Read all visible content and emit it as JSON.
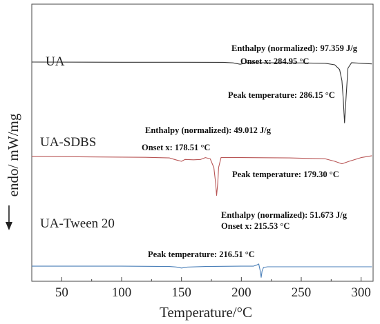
{
  "chart_data": {
    "type": "line",
    "xlabel": "Temperature/°C",
    "ylabel": "endo/ mW/mg",
    "xlim": [
      25,
      310
    ],
    "xticks": [
      50,
      100,
      150,
      200,
      250,
      300
    ],
    "xtick_labels": [
      "50",
      "100",
      "150",
      "200",
      "250",
      "300"
    ],
    "grid": false,
    "series": [
      {
        "name": "UA",
        "color": "#333333",
        "points": [
          [
            25,
            0.0
          ],
          [
            100,
            -0.3
          ],
          [
            150,
            -0.3
          ],
          [
            185,
            -0.4
          ],
          [
            193,
            -1.3
          ],
          [
            199,
            -3.5
          ],
          [
            205,
            -1.0
          ],
          [
            250,
            -1.4
          ],
          [
            270,
            -2.0
          ],
          [
            278,
            -4.5
          ],
          [
            282,
            -12
          ],
          [
            284,
            -30
          ],
          [
            285,
            -58
          ],
          [
            286.15,
            -98
          ],
          [
            287.5,
            -55
          ],
          [
            289,
            -10
          ],
          [
            292,
            -1.0
          ],
          [
            300,
            -2.0
          ],
          [
            309,
            -3.0
          ]
        ]
      },
      {
        "name": "UA-SDBS",
        "color": "#b85555",
        "points": [
          [
            25,
            -12.0
          ],
          [
            80,
            -13.0
          ],
          [
            120,
            -13.5
          ],
          [
            140,
            -14.5
          ],
          [
            146,
            -18.0
          ],
          [
            150,
            -20.0
          ],
          [
            153,
            -17.0
          ],
          [
            160,
            -17.5
          ],
          [
            166,
            -17.0
          ],
          [
            170,
            -14.0
          ],
          [
            174,
            -16.0
          ],
          [
            177,
            -30
          ],
          [
            178.5,
            -55
          ],
          [
            179.3,
            -75
          ],
          [
            180.3,
            -55
          ],
          [
            181,
            -30
          ],
          [
            183,
            -14.0
          ],
          [
            200,
            -14.0
          ],
          [
            240,
            -14.5
          ],
          [
            270,
            -16.0
          ],
          [
            278,
            -20.0
          ],
          [
            284,
            -24.0
          ],
          [
            290,
            -20.0
          ],
          [
            300,
            -14.0
          ],
          [
            309,
            -11.0
          ]
        ]
      },
      {
        "name": "UA-Tween 20",
        "color": "#4a7fb8",
        "points": [
          [
            25,
            -49.0
          ],
          [
            100,
            -49.0
          ],
          [
            140,
            -49.5
          ],
          [
            146,
            -50.5
          ],
          [
            150,
            -52.0
          ],
          [
            155,
            -50.5
          ],
          [
            170,
            -49.5
          ],
          [
            200,
            -49.0
          ],
          [
            210,
            -49.0
          ],
          [
            213,
            -47.0
          ],
          [
            214.5,
            -45.5
          ],
          [
            215.8,
            -57
          ],
          [
            216.51,
            -67
          ],
          [
            217.3,
            -57
          ],
          [
            218.5,
            -51.0
          ],
          [
            222,
            -50.0
          ],
          [
            240,
            -50.0
          ],
          [
            280,
            -50.0
          ],
          [
            309,
            -50.0
          ]
        ]
      }
    ],
    "annotations": [
      "Enthalpy (normalized): 97.359 J/g",
      "Onset x: 284.95 °C",
      "Peak temperature: 286.15 °C",
      "Enthalpy (normalized): 49.012 J/g",
      "Onset x: 178.51 °C",
      "Peak temperature: 179.30 °C",
      "Enthalpy (normalized): 51.673 J/g",
      "Onset x: 215.53 °C",
      "Peak temperature: 216.51 °C"
    ]
  }
}
